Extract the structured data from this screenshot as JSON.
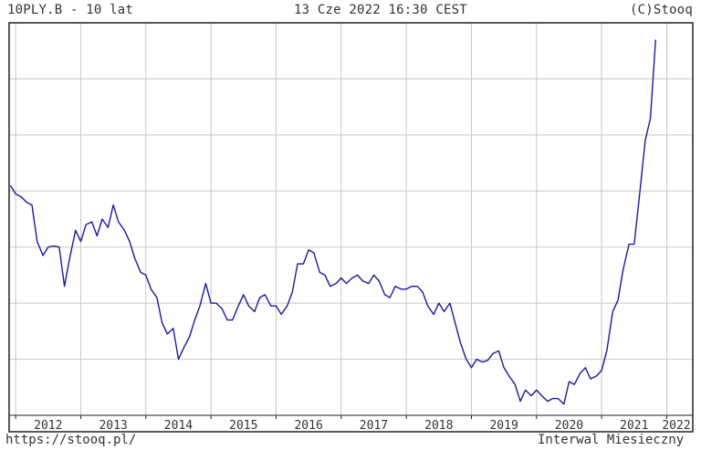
{
  "header": {
    "symbol_title": "10PLY.B - 10 lat",
    "timestamp": "13 Cze 2022 16:30 CEST",
    "copyright": "(C)Stooq"
  },
  "footer": {
    "url": "https://stooq.pl/",
    "interval": "Interwal Miesieczny"
  },
  "colors": {
    "line": "#1a1a9e",
    "grid": "#c8c8c8",
    "frame": "#222222"
  },
  "chart_data": {
    "type": "line",
    "title": "10PLY.B - 10 lat",
    "xlabel": "",
    "ylabel": "",
    "grid": true,
    "x_tick_labels": [
      "2012",
      "2013",
      "2014",
      "2015",
      "2016",
      "2017",
      "2018",
      "2019",
      "2020",
      "2021",
      "2022"
    ],
    "xlim": [
      2011.9,
      2022.4
    ],
    "ylim": [
      0,
      7
    ],
    "y_tick_values": [
      1,
      2,
      3,
      4,
      5,
      6
    ],
    "series": [
      {
        "values": [
          [
            2011.92,
            4.1
          ],
          [
            2012.0,
            3.95
          ],
          [
            2012.08,
            3.9
          ],
          [
            2012.17,
            3.8
          ],
          [
            2012.25,
            3.75
          ],
          [
            2012.33,
            3.1
          ],
          [
            2012.42,
            2.85
          ],
          [
            2012.5,
            3.0
          ],
          [
            2012.58,
            3.02
          ],
          [
            2012.67,
            3.0
          ],
          [
            2012.75,
            2.3
          ],
          [
            2012.83,
            2.8
          ],
          [
            2012.92,
            3.3
          ],
          [
            2013.0,
            3.1
          ],
          [
            2013.08,
            3.4
          ],
          [
            2013.17,
            3.45
          ],
          [
            2013.25,
            3.2
          ],
          [
            2013.33,
            3.5
          ],
          [
            2013.42,
            3.35
          ],
          [
            2013.5,
            3.75
          ],
          [
            2013.58,
            3.45
          ],
          [
            2013.67,
            3.3
          ],
          [
            2013.75,
            3.1
          ],
          [
            2013.83,
            2.8
          ],
          [
            2013.92,
            2.55
          ],
          [
            2014.0,
            2.5
          ],
          [
            2014.08,
            2.25
          ],
          [
            2014.17,
            2.1
          ],
          [
            2014.25,
            1.65
          ],
          [
            2014.33,
            1.45
          ],
          [
            2014.42,
            1.55
          ],
          [
            2014.5,
            1.0
          ],
          [
            2014.58,
            1.2
          ],
          [
            2014.67,
            1.4
          ],
          [
            2014.75,
            1.7
          ],
          [
            2014.83,
            1.95
          ],
          [
            2014.92,
            2.35
          ],
          [
            2015.0,
            2.0
          ],
          [
            2015.08,
            2.0
          ],
          [
            2015.17,
            1.9
          ],
          [
            2015.25,
            1.7
          ],
          [
            2015.33,
            1.7
          ],
          [
            2015.42,
            1.95
          ],
          [
            2015.5,
            2.15
          ],
          [
            2015.58,
            1.95
          ],
          [
            2015.67,
            1.85
          ],
          [
            2015.75,
            2.1
          ],
          [
            2015.83,
            2.15
          ],
          [
            2015.92,
            1.95
          ],
          [
            2016.0,
            1.95
          ],
          [
            2016.08,
            1.8
          ],
          [
            2016.17,
            1.95
          ],
          [
            2016.25,
            2.2
          ],
          [
            2016.33,
            2.7
          ],
          [
            2016.42,
            2.7
          ],
          [
            2016.5,
            2.95
          ],
          [
            2016.58,
            2.9
          ],
          [
            2016.67,
            2.55
          ],
          [
            2016.75,
            2.5
          ],
          [
            2016.83,
            2.3
          ],
          [
            2016.92,
            2.35
          ],
          [
            2017.0,
            2.45
          ],
          [
            2017.08,
            2.35
          ],
          [
            2017.17,
            2.45
          ],
          [
            2017.25,
            2.5
          ],
          [
            2017.33,
            2.4
          ],
          [
            2017.42,
            2.35
          ],
          [
            2017.5,
            2.5
          ],
          [
            2017.58,
            2.4
          ],
          [
            2017.67,
            2.15
          ],
          [
            2017.75,
            2.1
          ],
          [
            2017.83,
            2.3
          ],
          [
            2017.92,
            2.25
          ],
          [
            2018.0,
            2.25
          ],
          [
            2018.08,
            2.3
          ],
          [
            2018.17,
            2.3
          ],
          [
            2018.25,
            2.2
          ],
          [
            2018.33,
            1.95
          ],
          [
            2018.42,
            1.8
          ],
          [
            2018.5,
            2.0
          ],
          [
            2018.58,
            1.85
          ],
          [
            2018.67,
            2.0
          ],
          [
            2018.75,
            1.65
          ],
          [
            2018.83,
            1.3
          ],
          [
            2018.92,
            1.0
          ],
          [
            2019.0,
            0.85
          ],
          [
            2019.08,
            1.0
          ],
          [
            2019.17,
            0.95
          ],
          [
            2019.25,
            0.98
          ],
          [
            2019.33,
            1.1
          ],
          [
            2019.42,
            1.15
          ],
          [
            2019.5,
            0.85
          ],
          [
            2019.58,
            0.7
          ],
          [
            2019.67,
            0.55
          ],
          [
            2019.75,
            0.25
          ],
          [
            2019.83,
            0.45
          ],
          [
            2019.92,
            0.35
          ],
          [
            2020.0,
            0.45
          ],
          [
            2020.08,
            0.35
          ],
          [
            2020.17,
            0.25
          ],
          [
            2020.25,
            0.3
          ],
          [
            2020.33,
            0.3
          ],
          [
            2020.42,
            0.2
          ],
          [
            2020.5,
            0.6
          ],
          [
            2020.58,
            0.55
          ],
          [
            2020.67,
            0.75
          ],
          [
            2020.75,
            0.85
          ],
          [
            2020.83,
            0.65
          ],
          [
            2020.92,
            0.7
          ],
          [
            2021.0,
            0.8
          ],
          [
            2021.08,
            1.15
          ],
          [
            2021.17,
            1.85
          ],
          [
            2021.25,
            2.05
          ],
          [
            2021.33,
            2.6
          ],
          [
            2021.42,
            3.05
          ],
          [
            2021.5,
            3.05
          ],
          [
            2021.58,
            3.9
          ],
          [
            2021.67,
            4.9
          ],
          [
            2021.75,
            5.3
          ],
          [
            2021.83,
            6.7
          ]
        ]
      }
    ]
  }
}
